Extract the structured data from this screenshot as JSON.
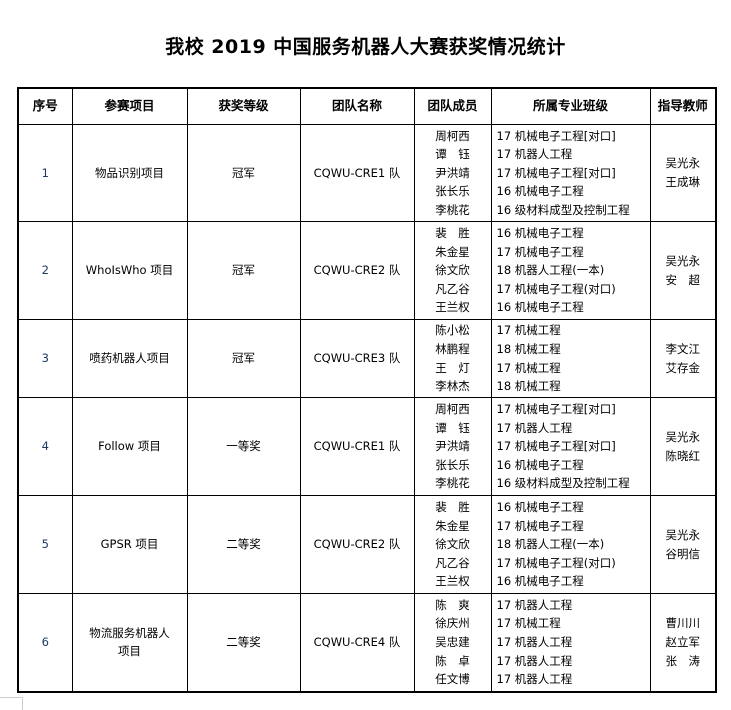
{
  "title": "我校 2019 中国服务机器人大赛获奖情况统计",
  "headers": [
    "序号",
    "参赛项目",
    "获奖等级",
    "团队名称",
    "团队成员",
    "所属专业班级",
    "指导教师"
  ],
  "rows": [
    {
      "no": "1",
      "project": [
        "物品识别项目"
      ],
      "award": "冠军",
      "team": "CQWU-CRE1 队",
      "members": [
        "周柯西",
        "谭　钰",
        "尹洪靖",
        "张长乐",
        "李桃花"
      ],
      "classes": [
        "17 机械电子工程[对口]",
        "17 机器人工程",
        "17 机械电子工程[对口]",
        "16 机械电子工程",
        "16 级材料成型及控制工程"
      ],
      "teachers": [
        "吴光永",
        "王成琳"
      ]
    },
    {
      "no": "2",
      "project": [
        "WhoIsWho 项目"
      ],
      "award": "冠军",
      "team": "CQWU-CRE2 队",
      "members": [
        "裴　胜",
        "朱金星",
        "徐文欣",
        "凡乙谷",
        "王兰权"
      ],
      "classes": [
        "16 机械电子工程",
        "17 机械电子工程",
        "18 机器人工程(一本)",
        "17 机械电子工程(对口)",
        "16 机械电子工程"
      ],
      "teachers": [
        "吴光永",
        "安　超"
      ]
    },
    {
      "no": "3",
      "project": [
        "喷药机器人项目"
      ],
      "award": "冠军",
      "team": "CQWU-CRE3 队",
      "members": [
        "陈小松",
        "林鹏程",
        "王　灯",
        "李林杰"
      ],
      "classes": [
        "17 机械工程",
        "18 机械工程",
        "17 机械工程",
        "18 机械工程"
      ],
      "teachers": [
        "李文江",
        "艾存金"
      ]
    },
    {
      "no": "4",
      "project": [
        "Follow 项目"
      ],
      "award": "一等奖",
      "team": "CQWU-CRE1 队",
      "members": [
        "周柯西",
        "谭　钰",
        "尹洪靖",
        "张长乐",
        "李桃花"
      ],
      "classes": [
        "17 机械电子工程[对口]",
        "17 机器人工程",
        "17 机械电子工程[对口]",
        "16 机械电子工程",
        "16 级材料成型及控制工程"
      ],
      "teachers": [
        "吴光永",
        "陈晓红"
      ]
    },
    {
      "no": "5",
      "project": [
        "GPSR 项目"
      ],
      "award": "二等奖",
      "team": "CQWU-CRE2 队",
      "members": [
        "裴　胜",
        "朱金星",
        "徐文欣",
        "凡乙谷",
        "王兰权"
      ],
      "classes": [
        "16 机械电子工程",
        "17 机械电子工程",
        "18 机器人工程(一本)",
        "17 机械电子工程(对口)",
        "16 机械电子工程"
      ],
      "teachers": [
        "吴光永",
        "谷明信"
      ]
    },
    {
      "no": "6",
      "project": [
        "物流服务机器人",
        "项目"
      ],
      "award": "二等奖",
      "team": "CQWU-CRE4 队",
      "members": [
        "陈　爽",
        "徐庆州",
        "吴忠建",
        "陈　卓",
        "任文博"
      ],
      "classes": [
        "17 机器人工程",
        "17 机械工程",
        "17 机器人工程",
        "17 机器人工程",
        "17 机器人工程"
      ],
      "teachers": [
        "曹川川",
        "赵立军",
        "张　涛"
      ]
    }
  ]
}
